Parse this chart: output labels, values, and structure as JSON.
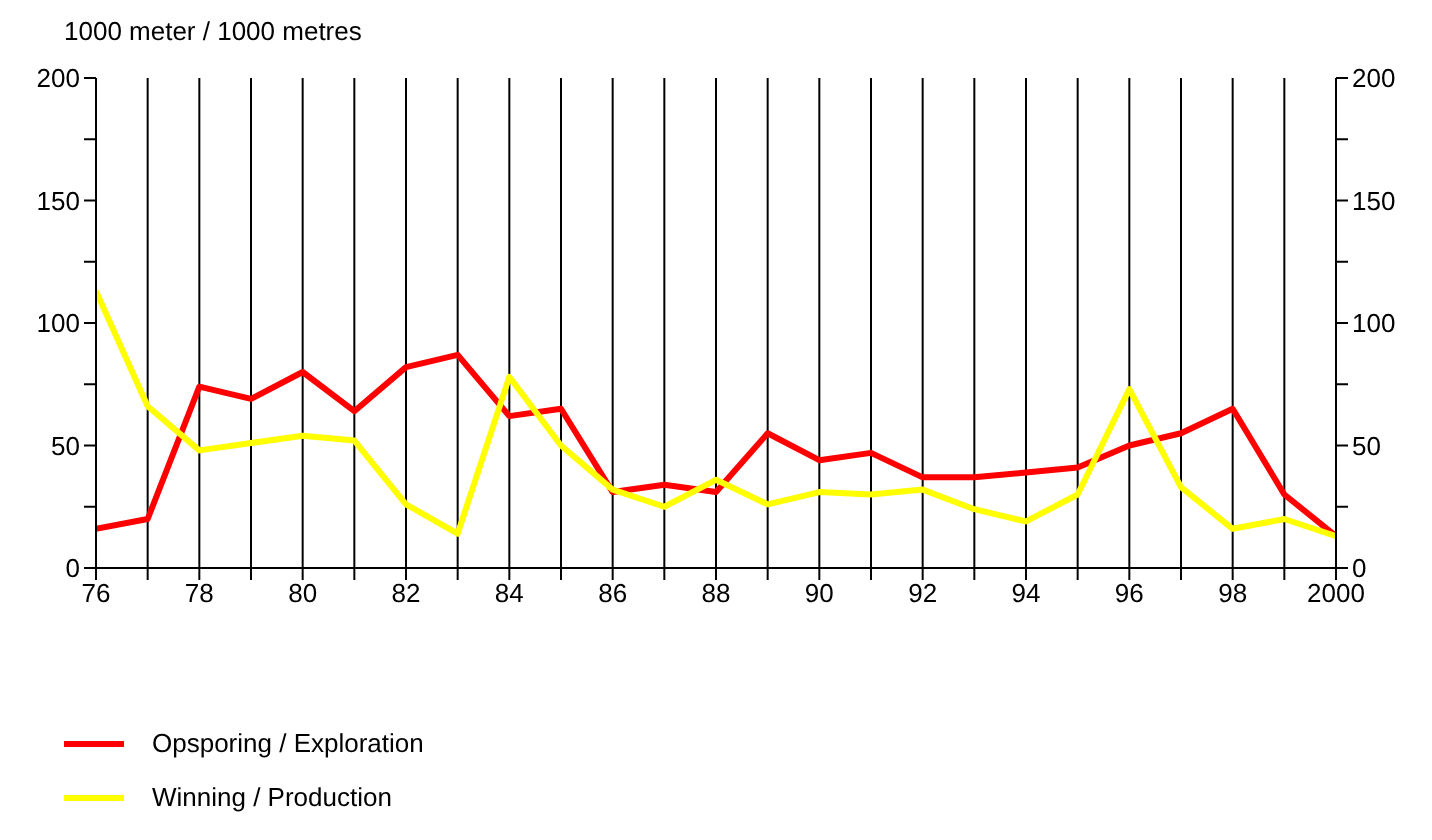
{
  "chart_data": {
    "type": "line",
    "ylabel": "1000 meter / 1000 metres",
    "x": [
      1976,
      1977,
      1978,
      1979,
      1980,
      1981,
      1982,
      1983,
      1984,
      1985,
      1986,
      1987,
      1988,
      1989,
      1990,
      1991,
      1992,
      1993,
      1994,
      1995,
      1996,
      1997,
      1998,
      1999,
      2000
    ],
    "series": [
      {
        "name": "Opsporing / Exploration",
        "color": "#ff0000",
        "values": [
          16,
          20,
          74,
          69,
          80,
          64,
          82,
          87,
          62,
          65,
          31,
          34,
          31,
          55,
          44,
          47,
          37,
          37,
          39,
          41,
          50,
          55,
          65,
          30,
          13
        ]
      },
      {
        "name": "Winning / Production",
        "color": "#ffff00",
        "values": [
          113,
          66,
          48,
          51,
          54,
          52,
          26,
          14,
          78,
          50,
          32,
          25,
          36,
          26,
          31,
          30,
          32,
          24,
          19,
          30,
          73,
          33,
          16,
          20,
          13
        ]
      }
    ],
    "xlim": [
      1976,
      2000
    ],
    "xticks": [
      {
        "value": 1976,
        "label": "76"
      },
      {
        "value": 1977,
        "label": null
      },
      {
        "value": 1978,
        "label": "78"
      },
      {
        "value": 1979,
        "label": null
      },
      {
        "value": 1980,
        "label": "80"
      },
      {
        "value": 1981,
        "label": null
      },
      {
        "value": 1982,
        "label": "82"
      },
      {
        "value": 1983,
        "label": null
      },
      {
        "value": 1984,
        "label": "84"
      },
      {
        "value": 1985,
        "label": null
      },
      {
        "value": 1986,
        "label": "86"
      },
      {
        "value": 1987,
        "label": null
      },
      {
        "value": 1988,
        "label": "88"
      },
      {
        "value": 1989,
        "label": null
      },
      {
        "value": 1990,
        "label": "90"
      },
      {
        "value": 1991,
        "label": null
      },
      {
        "value": 1992,
        "label": "92"
      },
      {
        "value": 1993,
        "label": null
      },
      {
        "value": 1994,
        "label": "94"
      },
      {
        "value": 1995,
        "label": null
      },
      {
        "value": 1996,
        "label": "96"
      },
      {
        "value": 1997,
        "label": null
      },
      {
        "value": 1998,
        "label": "98"
      },
      {
        "value": 1999,
        "label": null
      },
      {
        "value": 2000,
        "label": "2000"
      }
    ],
    "ylim": [
      0,
      200
    ],
    "yticks": [
      0,
      {
        "value": 25,
        "label": null
      },
      50,
      {
        "value": 75,
        "label": null
      },
      100,
      {
        "value": 125,
        "label": null
      },
      150,
      {
        "value": 175,
        "label": null
      },
      200
    ],
    "y2lim": [
      0,
      200
    ],
    "y2ticks": [
      0,
      {
        "value": 25,
        "label": null
      },
      50,
      {
        "value": 75,
        "label": null
      },
      100,
      {
        "value": 125,
        "label": null
      },
      150,
      {
        "value": 175,
        "label": null
      },
      200
    ],
    "grid": true,
    "legend": "bottom left",
    "marker": "none",
    "line_style": "solid"
  }
}
